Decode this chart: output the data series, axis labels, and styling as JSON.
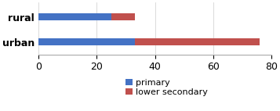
{
  "categories": [
    "urban",
    "rural"
  ],
  "primary": [
    33,
    25
  ],
  "lower_secondary": [
    43,
    8
  ],
  "primary_color": "#4472c4",
  "lower_secondary_color": "#c0504d",
  "xlim": [
    0,
    80
  ],
  "xticks": [
    0,
    20,
    40,
    60,
    80
  ],
  "legend_labels": [
    "primary",
    "lower secondary"
  ],
  "bar_height": 0.28,
  "background_color": "#ffffff",
  "figsize": [
    3.57,
    1.42
  ],
  "dpi": 100
}
